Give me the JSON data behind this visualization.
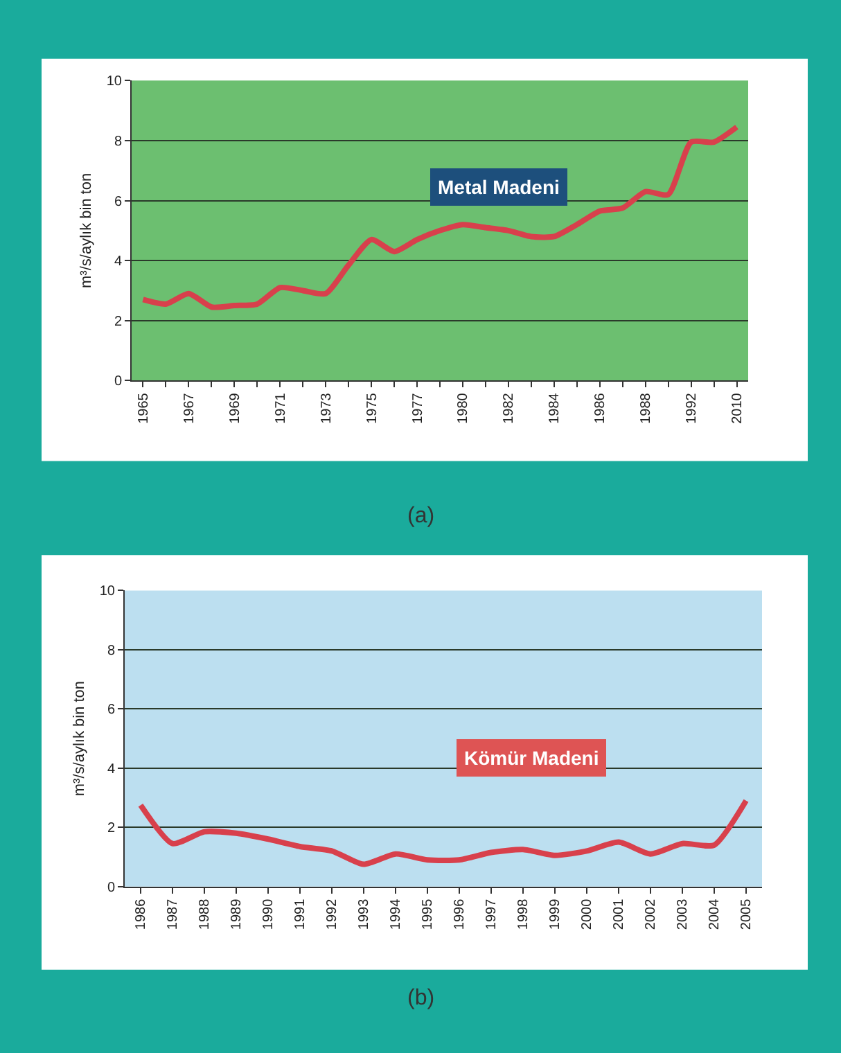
{
  "chart_data": [
    {
      "type": "line",
      "ylabel": "m³/s/aylık bin ton",
      "categories": [
        "1965",
        null,
        "1967",
        null,
        "1969",
        null,
        "1971",
        null,
        "1973",
        null,
        "1975",
        null,
        "1977",
        null,
        "1980",
        null,
        "1982",
        null,
        "1984",
        null,
        "1986",
        null,
        "1988",
        null,
        "1992",
        null,
        "2010"
      ],
      "series": [
        {
          "color": "#d8404c",
          "values": [
            2.7,
            2.55,
            2.9,
            2.45,
            2.5,
            2.55,
            3.1,
            3.0,
            2.9,
            3.85,
            4.7,
            4.3,
            4.7,
            5.0,
            5.2,
            5.1,
            5.0,
            4.8,
            4.8,
            5.2,
            5.65,
            5.75,
            6.3,
            6.2,
            7.95,
            7.95,
            8.45
          ]
        }
      ],
      "ylim": [
        0,
        10
      ],
      "yticks": [
        0,
        2,
        4,
        6,
        8,
        10
      ],
      "grid": "y",
      "line_style": "solid",
      "marker": "none",
      "annotations": [
        "Metal Madeni",
        "(a)"
      ]
    },
    {
      "type": "line",
      "ylabel": "m³/s/aylık bin ton",
      "categories": [
        "1986",
        "1987",
        "1988",
        "1989",
        "1990",
        "1991",
        "1992",
        "1993",
        "1994",
        "1995",
        "1996",
        "1997",
        "1998",
        "1999",
        "2000",
        "2001",
        "2002",
        "2003",
        "2004",
        "2005"
      ],
      "series": [
        {
          "color": "#d8404c",
          "values": [
            2.75,
            1.45,
            1.85,
            1.8,
            1.6,
            1.35,
            1.2,
            0.75,
            1.1,
            0.9,
            0.9,
            1.15,
            1.25,
            1.05,
            1.2,
            1.5,
            1.1,
            1.45,
            1.4,
            2.9
          ]
        }
      ],
      "ylim": [
        0,
        10
      ],
      "yticks": [
        0,
        2,
        4,
        6,
        8,
        10
      ],
      "grid": "y",
      "line_style": "solid",
      "marker": "none",
      "annotations": [
        "Kömür Madeni",
        "(b)"
      ]
    }
  ]
}
